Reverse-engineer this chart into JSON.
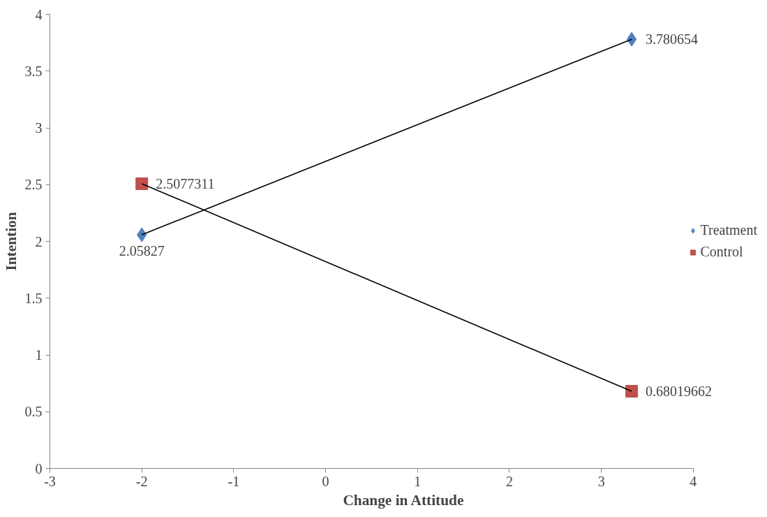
{
  "chart_data": {
    "type": "scatter",
    "xlabel": "Change in Attitude",
    "ylabel": "Intention",
    "xlim": [
      -3,
      4
    ],
    "xticks": [
      -3,
      -2,
      -1,
      0,
      1,
      2,
      3,
      4
    ],
    "ylim": [
      0,
      4
    ],
    "yticks": [
      0,
      0.5,
      1,
      1.5,
      2,
      2.5,
      3,
      3.5,
      4
    ],
    "legend": "right",
    "grid": false,
    "x": [
      -2,
      3.33
    ],
    "series": [
      {
        "name": "Treatment",
        "marker": "diamond",
        "color": "#4f81bd",
        "values": [
          2.05827,
          3.780654
        ],
        "value_labels": [
          "2.05827",
          "3.780654"
        ]
      },
      {
        "name": "Control",
        "marker": "square",
        "color": "#c0504d",
        "values": [
          2.5077311,
          0.68019662
        ],
        "value_labels": [
          "2.5077311",
          "0.68019662"
        ]
      },
      {
        "type": "line",
        "color": "#000000",
        "values": [
          2.05827,
          3.780654
        ]
      },
      {
        "type": "line",
        "color": "#000000",
        "values": [
          2.5077311,
          0.68019662
        ]
      }
    ]
  }
}
